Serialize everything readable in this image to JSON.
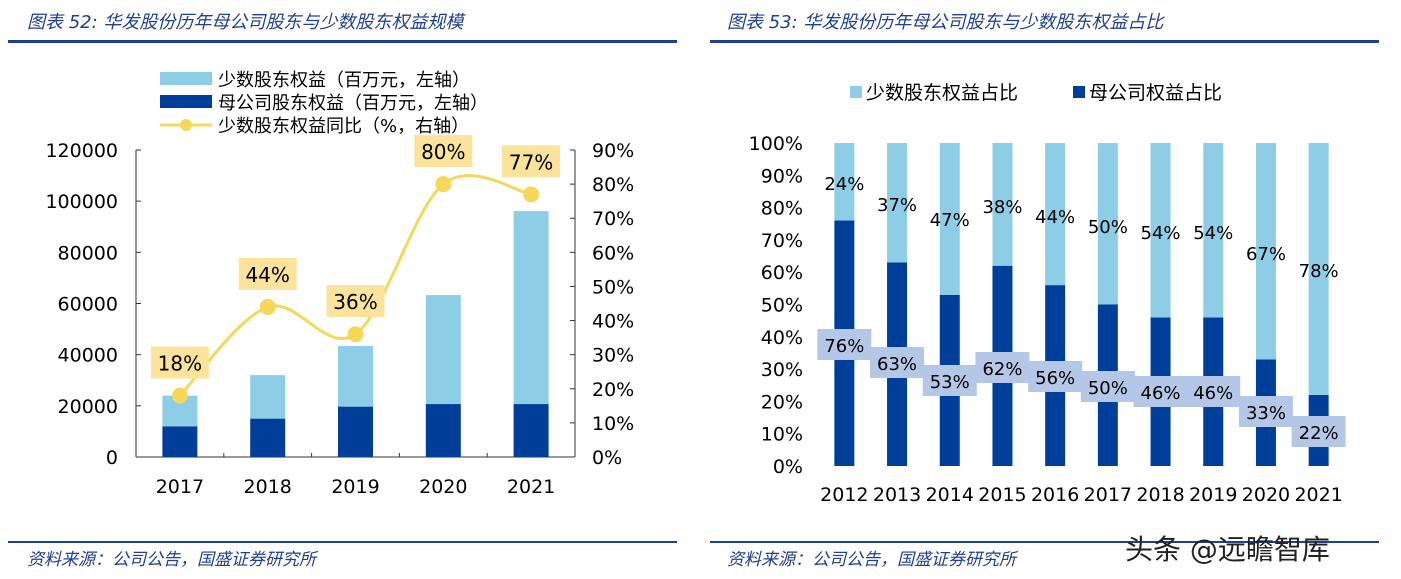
{
  "left": {
    "title": "图表 52:  华发股份历年母公司股东与少数股东权益规模",
    "source": "资料来源：公司公告，国盛证券研究所"
  },
  "right": {
    "title": "图表 53:  华发股份历年母公司股东与少数股东权益占比",
    "source": "资料来源：公司公告，国盛证券研究所"
  },
  "watermark": "头条 @远瞻智库",
  "chart_data": [
    {
      "type": "bar",
      "stacked": true,
      "categories": [
        "2017",
        "2018",
        "2019",
        "2020",
        "2021"
      ],
      "series": [
        {
          "name": "母公司股东权益（百万元，左轴）",
          "values": [
            12000,
            15000,
            19700,
            20700,
            20700
          ],
          "color": "#003f99"
        },
        {
          "name": "少数股东权益（百万元，左轴）",
          "values": [
            12000,
            17000,
            23700,
            42600,
            75400
          ],
          "color": "#8ecde6"
        },
        {
          "name": "少数股东权益同比（%，右轴）",
          "type": "line",
          "axis": "right",
          "values": [
            18,
            44,
            36,
            80,
            77
          ],
          "labels": [
            "18%",
            "44%",
            "36%",
            "80%",
            "77%"
          ],
          "color": "#f5d75a"
        }
      ],
      "ylim": [
        0,
        120000
      ],
      "yticks": [
        "0",
        "20000",
        "40000",
        "60000",
        "80000",
        "100000",
        "120000"
      ],
      "y2lim": [
        0,
        90
      ],
      "y2ticks": [
        "0%",
        "10%",
        "20%",
        "30%",
        "40%",
        "50%",
        "60%",
        "70%",
        "80%",
        "90%"
      ],
      "legend": "top"
    },
    {
      "type": "bar",
      "stacked": true,
      "percent": true,
      "categories": [
        "2012",
        "2013",
        "2014",
        "2015",
        "2016",
        "2017",
        "2018",
        "2019",
        "2020",
        "2021"
      ],
      "series": [
        {
          "name": "母公司权益占比",
          "values": [
            76,
            63,
            53,
            62,
            56,
            50,
            46,
            46,
            33,
            22
          ],
          "labels": [
            "76%",
            "63%",
            "53%",
            "62%",
            "56%",
            "50%",
            "46%",
            "46%",
            "33%",
            "22%"
          ],
          "color": "#003f99"
        },
        {
          "name": "少数股东权益占比",
          "values": [
            24,
            37,
            47,
            38,
            44,
            50,
            54,
            54,
            67,
            78
          ],
          "labels": [
            "24%",
            "37%",
            "47%",
            "38%",
            "44%",
            "50%",
            "54%",
            "54%",
            "67%",
            "78%"
          ],
          "color": "#8ecde6"
        }
      ],
      "ylim": [
        0,
        100
      ],
      "yticks": [
        "0%",
        "10%",
        "20%",
        "30%",
        "40%",
        "50%",
        "60%",
        "70%",
        "80%",
        "90%",
        "100%"
      ],
      "legend": "top"
    }
  ]
}
